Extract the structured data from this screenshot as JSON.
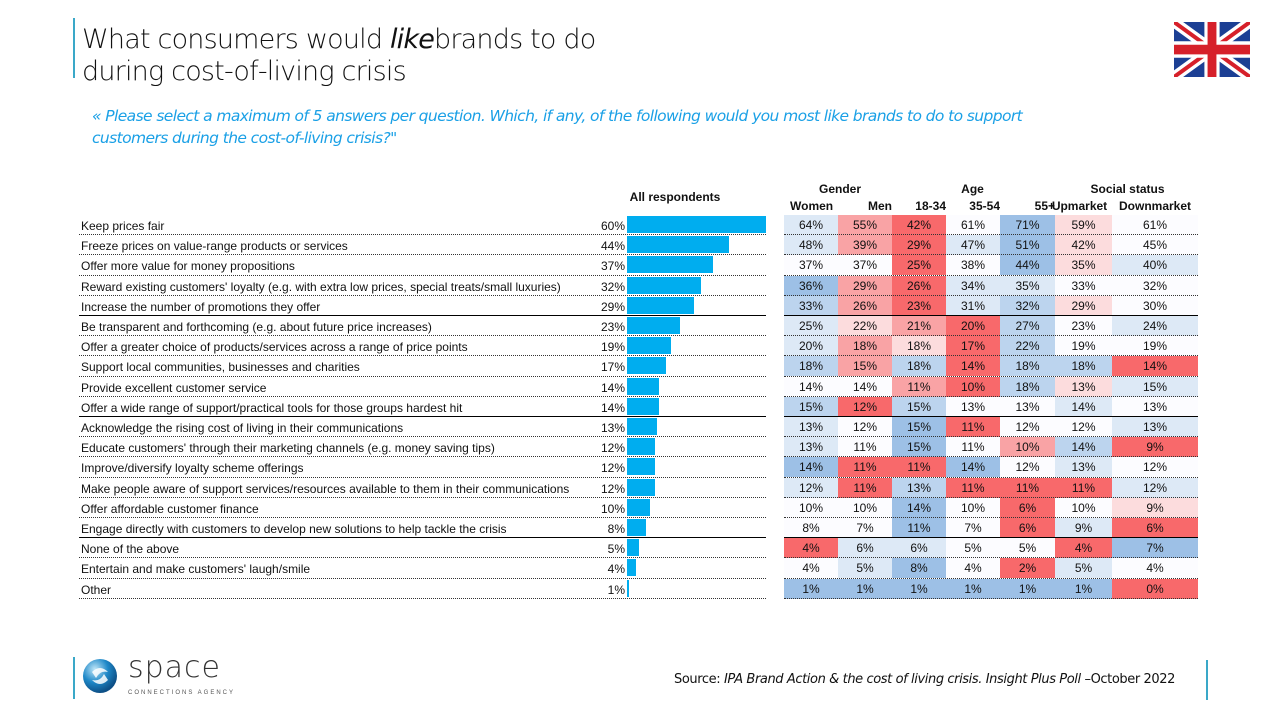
{
  "header": {
    "title_line1_a": "What consumers would ",
    "title_line1_em": "like",
    "title_line1_b": "brands to do",
    "title_line2": "during cost-of-living crisis",
    "subtitle": "«  Please select a maximum of 5 answers per question. Which, if any, of the following would you most like brands to do to support customers during the cost-of-living crisis?\""
  },
  "flag": {
    "icon": "uk-flag-icon"
  },
  "footer": {
    "source_label": "Source: ",
    "source_title": "IPA Brand Action & the cost of living crisis. Insight Plus Poll",
    "source_date": " –October 2022",
    "logo_name": "space",
    "logo_tagline": "CONNECTIONS AGENCY"
  },
  "colors": {
    "bar": "#00adef",
    "R3": "#f8696b",
    "R2": "#f9a3a5",
    "R1": "#fcdcdd",
    "W": "#fcfcff",
    "B1": "#dde9f6",
    "B2": "#bcd4ee",
    "B3": "#9dc0e6"
  },
  "chart_data": {
    "type": "table",
    "title": "What consumers would like brands to do during cost-of-living crisis",
    "bar_header": "All respondents",
    "group_headers": [
      "Gender",
      "Age",
      "Social status"
    ],
    "columns": [
      "Women",
      "Men",
      "18-34",
      "35-54",
      "55+",
      "Upmarket",
      "Downmarket"
    ],
    "rows": [
      {
        "label": "Keep prices fair",
        "all": 60,
        "values": [
          64,
          55,
          42,
          61,
          71,
          59,
          61
        ],
        "shade": [
          "B1",
          "R2",
          "R3",
          "W",
          "B3",
          "R1",
          "W"
        ]
      },
      {
        "label": "Freeze prices on value-range products or services",
        "all": 44,
        "values": [
          48,
          39,
          29,
          47,
          51,
          42,
          45
        ],
        "shade": [
          "B1",
          "R2",
          "R3",
          "B1",
          "B3",
          "R1",
          "W"
        ]
      },
      {
        "label": "Offer more value for money propositions",
        "all": 37,
        "values": [
          37,
          37,
          25,
          38,
          44,
          35,
          40
        ],
        "shade": [
          "W",
          "W",
          "R3",
          "W",
          "B3",
          "R1",
          "B1"
        ]
      },
      {
        "label": "Reward existing customers' loyalty (e.g. with extra low prices, special treats/small luxuries)",
        "all": 32,
        "values": [
          36,
          29,
          26,
          34,
          35,
          33,
          32
        ],
        "shade": [
          "B3",
          "R2",
          "R3",
          "B1",
          "B1",
          "W",
          "W"
        ]
      },
      {
        "label": "Increase the number of promotions they offer",
        "all": 29,
        "values": [
          33,
          26,
          23,
          31,
          32,
          29,
          30
        ],
        "shade": [
          "B2",
          "R2",
          "R3",
          "B1",
          "B2",
          "R1",
          "W"
        ]
      },
      {
        "label": "Be transparent and forthcoming (e.g. about future price increases)",
        "all": 23,
        "values": [
          25,
          22,
          21,
          20,
          27,
          23,
          24
        ],
        "shade": [
          "B1",
          "R1",
          "R2",
          "R3",
          "B2",
          "W",
          "B1"
        ]
      },
      {
        "label": "Offer a greater choice of products/services across a range of price points",
        "all": 19,
        "values": [
          20,
          18,
          18,
          17,
          22,
          19,
          19
        ],
        "shade": [
          "B1",
          "R2",
          "R1",
          "R3",
          "B2",
          "W",
          "W"
        ]
      },
      {
        "label": "Support local communities, businesses and charities",
        "all": 17,
        "values": [
          18,
          15,
          18,
          14,
          18,
          18,
          14
        ],
        "shade": [
          "B2",
          "R2",
          "B2",
          "R3",
          "B2",
          "B2",
          "R3"
        ]
      },
      {
        "label": "Provide excellent customer service",
        "all": 14,
        "values": [
          14,
          14,
          11,
          10,
          18,
          13,
          15
        ],
        "shade": [
          "W",
          "W",
          "R2",
          "R3",
          "B2",
          "R1",
          "B1"
        ]
      },
      {
        "label": "Offer a wide range of support/practical tools for those groups hardest hit",
        "all": 14,
        "values": [
          15,
          12,
          15,
          13,
          13,
          14,
          13
        ],
        "shade": [
          "B2",
          "R3",
          "B2",
          "W",
          "W",
          "B1",
          "W"
        ]
      },
      {
        "label": "Acknowledge the rising cost of living in their communications",
        "all": 13,
        "values": [
          13,
          12,
          15,
          11,
          12,
          12,
          13
        ],
        "shade": [
          "B1",
          "W",
          "B3",
          "R3",
          "W",
          "W",
          "B1"
        ]
      },
      {
        "label": "Educate customers' through their marketing channels (e.g. money saving tips)",
        "all": 12,
        "values": [
          13,
          11,
          15,
          11,
          10,
          14,
          9
        ],
        "shade": [
          "B1",
          "W",
          "B3",
          "W",
          "R2",
          "B2",
          "R3"
        ]
      },
      {
        "label": "Improve/diversify loyalty scheme offerings",
        "all": 12,
        "values": [
          14,
          11,
          11,
          14,
          12,
          13,
          12
        ],
        "shade": [
          "B3",
          "R3",
          "R3",
          "B3",
          "W",
          "B1",
          "W"
        ]
      },
      {
        "label": "Make people aware of support services/resources available to them in their communications",
        "all": 12,
        "values": [
          12,
          11,
          13,
          11,
          11,
          11,
          12
        ],
        "shade": [
          "B1",
          "R3",
          "B2",
          "R3",
          "R3",
          "R3",
          "B1"
        ]
      },
      {
        "label": "Offer affordable customer finance",
        "all": 10,
        "values": [
          10,
          10,
          14,
          10,
          6,
          10,
          9
        ],
        "shade": [
          "W",
          "W",
          "B3",
          "W",
          "R3",
          "W",
          "R1"
        ]
      },
      {
        "label": "Engage directly with customers to develop new solutions to help tackle the crisis",
        "all": 8,
        "values": [
          8,
          7,
          11,
          7,
          6,
          9,
          6
        ],
        "shade": [
          "W",
          "W",
          "B3",
          "W",
          "R3",
          "B1",
          "R3"
        ]
      },
      {
        "label": "None of the above",
        "all": 5,
        "values": [
          4,
          6,
          6,
          5,
          5,
          4,
          7
        ],
        "shade": [
          "R3",
          "B1",
          "B1",
          "W",
          "W",
          "R3",
          "B3"
        ]
      },
      {
        "label": "Entertain and make customers' laugh/smile",
        "all": 4,
        "values": [
          4,
          5,
          8,
          4,
          2,
          5,
          4
        ],
        "shade": [
          "W",
          "B1",
          "B3",
          "W",
          "R3",
          "B1",
          "W"
        ]
      },
      {
        "label": "Other",
        "all": 1,
        "values": [
          1,
          1,
          1,
          1,
          1,
          1,
          0
        ],
        "shade": [
          "B3",
          "B3",
          "B3",
          "B3",
          "B3",
          "B3",
          "R3"
        ]
      }
    ],
    "solid_dividers_after_rows": [
      4,
      9,
      15
    ],
    "bar_scale_max": 60
  }
}
